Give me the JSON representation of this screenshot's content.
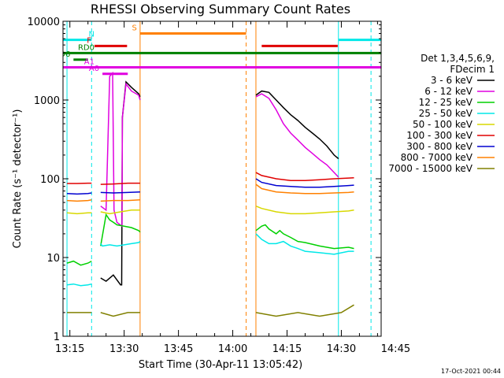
{
  "chart_data": {
    "type": "line",
    "title": "RHESSI Observing Summary Count Rates",
    "xlabel": "Start Time (30-Apr-11 13:05:42)",
    "ylabel": "Count Rate (s⁻¹ detector⁻¹)",
    "ylog": true,
    "ylim": [
      1,
      10000
    ],
    "xlim_minutes": [
      13.1,
      101.0
    ],
    "x_ticks": [
      {
        "label": "13:15",
        "value": 15
      },
      {
        "label": "13:30",
        "value": 30
      },
      {
        "label": "13:45",
        "value": 45
      },
      {
        "label": "14:00",
        "value": 60
      },
      {
        "label": "14:15",
        "value": 75
      },
      {
        "label": "14:30",
        "value": 90
      },
      {
        "label": "14:45",
        "value": 105
      }
    ],
    "y_ticks": [
      {
        "label": "1",
        "value": 1
      },
      {
        "label": "10",
        "value": 10
      },
      {
        "label": "100",
        "value": 100
      },
      {
        "label": "1000",
        "value": 1000
      },
      {
        "label": "10000",
        "value": 10000
      }
    ],
    "legend": {
      "placement": "right",
      "header": [
        "Det 1,3,4,5,6,9,",
        "FDecim 1"
      ],
      "entries": [
        {
          "name": "3 - 6 keV",
          "color": "#000000"
        },
        {
          "name": "6 - 12 keV",
          "color": "#e000e0"
        },
        {
          "name": "12 - 25 keV",
          "color": "#00d000"
        },
        {
          "name": "25 - 50 keV",
          "color": "#00e8e8"
        },
        {
          "name": "50 - 100 keV",
          "color": "#d8d800"
        },
        {
          "name": "100 - 300 keV",
          "color": "#e00000"
        },
        {
          "name": "300 - 800 keV",
          "color": "#0000d0"
        },
        {
          "name": "800 - 7000 keV",
          "color": "#ff8000"
        },
        {
          "name": "7000 - 15000 keV",
          "color": "#808000"
        }
      ]
    },
    "series": [
      {
        "name": "3 - 6 keV",
        "color": "#000000",
        "segments": [
          [
            [
              23.5,
              5.5
            ],
            [
              25,
              5
            ],
            [
              27,
              6
            ],
            [
              29,
              4.5
            ],
            [
              29.3,
              4.5
            ],
            [
              29.5,
              600
            ],
            [
              30.5,
              1700
            ],
            [
              32,
              1450
            ],
            [
              34,
              1200
            ],
            [
              34.4,
              1100
            ]
          ],
          [
            [
              66.4,
              1150
            ],
            [
              68,
              1300
            ],
            [
              70,
              1250
            ],
            [
              72,
              1000
            ],
            [
              74,
              800
            ],
            [
              76,
              650
            ],
            [
              78,
              550
            ],
            [
              80,
              450
            ],
            [
              82,
              380
            ],
            [
              84,
              320
            ],
            [
              86,
              260
            ],
            [
              88,
              200
            ],
            [
              89.2,
              180
            ]
          ]
        ]
      },
      {
        "name": "6 - 12 keV",
        "color": "#e000e0",
        "segments": [
          [
            [
              23.5,
              45
            ],
            [
              25,
              40
            ],
            [
              26,
              2000
            ],
            [
              26.8,
              2200
            ],
            [
              27.2,
              40
            ],
            [
              28,
              28
            ],
            [
              29.4,
              25
            ],
            [
              29.5,
              600
            ],
            [
              30.5,
              1600
            ],
            [
              32,
              1300
            ],
            [
              34,
              1150
            ],
            [
              34.4,
              1000
            ]
          ],
          [
            [
              66.4,
              1100
            ],
            [
              68,
              1200
            ],
            [
              70,
              1050
            ],
            [
              72,
              750
            ],
            [
              74,
              500
            ],
            [
              76,
              380
            ],
            [
              78,
              310
            ],
            [
              80,
              250
            ],
            [
              82,
              210
            ],
            [
              84,
              175
            ],
            [
              86,
              150
            ],
            [
              88,
              120
            ],
            [
              89.2,
              105
            ]
          ]
        ]
      },
      {
        "name": "12 - 25 keV",
        "color": "#00d000",
        "segments": [
          [
            [
              14.2,
              8.5
            ],
            [
              16,
              9
            ],
            [
              18,
              8
            ],
            [
              20,
              8.5
            ],
            [
              21,
              9
            ]
          ],
          [
            [
              23.5,
              14
            ],
            [
              25,
              35
            ],
            [
              26,
              30
            ],
            [
              27,
              28
            ],
            [
              28,
              26
            ],
            [
              30,
              25
            ],
            [
              32,
              24
            ],
            [
              34,
              22
            ],
            [
              34.4,
              21
            ]
          ],
          [
            [
              66.4,
              22
            ],
            [
              68,
              25
            ],
            [
              69,
              26
            ],
            [
              70,
              23
            ],
            [
              72,
              20
            ],
            [
              73,
              22
            ],
            [
              74,
              20
            ],
            [
              76,
              18
            ],
            [
              78,
              16
            ],
            [
              80,
              15.5
            ],
            [
              84,
              14
            ],
            [
              88,
              13
            ],
            [
              92,
              13.5
            ],
            [
              93.5,
              13
            ]
          ]
        ]
      },
      {
        "name": "25 - 50 keV",
        "color": "#00e8e8",
        "segments": [
          [
            [
              14.2,
              4.5
            ],
            [
              16,
              4.6
            ],
            [
              18,
              4.4
            ],
            [
              20,
              4.5
            ],
            [
              21,
              4.6
            ]
          ],
          [
            [
              23.5,
              15
            ],
            [
              24,
              14
            ],
            [
              26,
              14.5
            ],
            [
              28,
              14
            ],
            [
              30,
              14.5
            ],
            [
              32,
              15
            ],
            [
              34,
              15.5
            ],
            [
              34.4,
              16
            ]
          ],
          [
            [
              66.4,
              20
            ],
            [
              68,
              17
            ],
            [
              70,
              15
            ],
            [
              72,
              15
            ],
            [
              74,
              16
            ],
            [
              76,
              14
            ],
            [
              78,
              13
            ],
            [
              80,
              12
            ],
            [
              84,
              11.5
            ],
            [
              88,
              11
            ],
            [
              92,
              12
            ],
            [
              93.5,
              12
            ]
          ]
        ]
      },
      {
        "name": "50 - 100 keV",
        "color": "#d8d800",
        "segments": [
          [
            [
              14.2,
              37
            ],
            [
              17,
              36
            ],
            [
              20,
              37
            ],
            [
              21,
              37
            ]
          ],
          [
            [
              23.5,
              38
            ],
            [
              26,
              36
            ],
            [
              29,
              38
            ],
            [
              32,
              40
            ],
            [
              34.4,
              40
            ]
          ],
          [
            [
              66.4,
              45
            ],
            [
              68,
              42
            ],
            [
              72,
              38
            ],
            [
              76,
              36
            ],
            [
              80,
              36
            ],
            [
              84,
              37
            ],
            [
              88,
              38
            ],
            [
              92,
              39
            ],
            [
              93.5,
              40
            ]
          ]
        ]
      },
      {
        "name": "100 - 300 keV",
        "color": "#e00000",
        "segments": [
          [
            [
              14.2,
              87
            ],
            [
              17,
              87
            ],
            [
              20,
              88
            ],
            [
              21,
              88
            ]
          ],
          [
            [
              23.5,
              85
            ],
            [
              27,
              86
            ],
            [
              31,
              88
            ],
            [
              34.4,
              88
            ]
          ],
          [
            [
              66.4,
              120
            ],
            [
              68,
              110
            ],
            [
              72,
              100
            ],
            [
              76,
              95
            ],
            [
              80,
              95
            ],
            [
              84,
              97
            ],
            [
              88,
              100
            ],
            [
              92,
              102
            ],
            [
              93.5,
              103
            ]
          ]
        ]
      },
      {
        "name": "300 - 800 keV",
        "color": "#0000d0",
        "segments": [
          [
            [
              14.2,
              65
            ],
            [
              17,
              64
            ],
            [
              20,
              65
            ],
            [
              21,
              66
            ]
          ],
          [
            [
              23.5,
              67
            ],
            [
              27,
              66
            ],
            [
              31,
              67
            ],
            [
              34.4,
              68
            ]
          ],
          [
            [
              66.4,
              100
            ],
            [
              68,
              90
            ],
            [
              72,
              82
            ],
            [
              76,
              80
            ],
            [
              80,
              78
            ],
            [
              84,
              78
            ],
            [
              88,
              80
            ],
            [
              92,
              82
            ],
            [
              93.5,
              83
            ]
          ]
        ]
      },
      {
        "name": "800 - 7000 keV",
        "color": "#ff8000",
        "segments": [
          [
            [
              14.2,
              53
            ],
            [
              17,
              52
            ],
            [
              20,
              53
            ],
            [
              21,
              54
            ]
          ],
          [
            [
              23.5,
              52
            ],
            [
              27,
              53
            ],
            [
              31,
              53
            ],
            [
              34.4,
              54
            ]
          ],
          [
            [
              66.4,
              85
            ],
            [
              68,
              75
            ],
            [
              72,
              68
            ],
            [
              76,
              66
            ],
            [
              80,
              65
            ],
            [
              84,
              65
            ],
            [
              88,
              66
            ],
            [
              92,
              67
            ],
            [
              93.5,
              68
            ]
          ]
        ]
      },
      {
        "name": "7000 - 15000 keV",
        "color": "#808000",
        "segments": [
          [
            [
              14.2,
              2
            ],
            [
              17,
              2
            ],
            [
              20,
              2
            ],
            [
              21,
              2
            ]
          ],
          [
            [
              23.5,
              2
            ],
            [
              27,
              1.8
            ],
            [
              31,
              2
            ],
            [
              34.4,
              2
            ]
          ],
          [
            [
              66.4,
              2
            ],
            [
              72,
              1.8
            ],
            [
              78,
              2
            ],
            [
              84,
              1.8
            ],
            [
              90,
              2
            ],
            [
              93.5,
              2.5
            ]
          ]
        ]
      }
    ],
    "vertical_lines": [
      {
        "x": 14.2,
        "color": "#00e8e8",
        "style": "solid"
      },
      {
        "x": 21.0,
        "color": "#00e8e8",
        "style": "dashed"
      },
      {
        "x": 34.4,
        "color": "#ff8000",
        "style": "solid"
      },
      {
        "x": 63.7,
        "color": "#ff8000",
        "style": "dashed"
      },
      {
        "x": 66.4,
        "color": "#ff8000",
        "style": "solid"
      },
      {
        "x": 89.2,
        "color": "#00e8e8",
        "style": "solid"
      },
      {
        "x": 98.2,
        "color": "#00e8e8",
        "style": "dashed"
      }
    ],
    "flag_bars": [
      {
        "label": "S",
        "color": "#ff8000",
        "segments": [
          [
            34.4,
            63.7
          ]
        ],
        "level": 7000
      },
      {
        "label": "N",
        "color": "#00e8e8",
        "segments": [
          [
            13.1,
            21.0
          ],
          [
            89.2,
            101
          ]
        ],
        "level": 5800
      },
      {
        "label": "F",
        "color": "#e00000",
        "segments": [
          [
            21.8,
            30.8
          ],
          [
            68.0,
            89.0
          ]
        ],
        "level": 4850
      },
      {
        "label": "RD0",
        "color": "#008000",
        "segments": [
          [
            13.1,
            101
          ]
        ],
        "level": 3950
      },
      {
        "label": "RD6",
        "color": "#008000",
        "segments": [
          [
            16.0,
            20.0
          ]
        ],
        "level": 3250
      },
      {
        "label": "A0",
        "color": "#e000e0",
        "segments": [
          [
            24.0,
            31.0
          ]
        ],
        "level": 2150
      },
      {
        "label": "A1",
        "color": "#e000e0",
        "segments": [
          [
            13.1,
            101
          ]
        ],
        "level": 2600
      }
    ],
    "timestamp": "17-Oct-2021 00:44"
  }
}
